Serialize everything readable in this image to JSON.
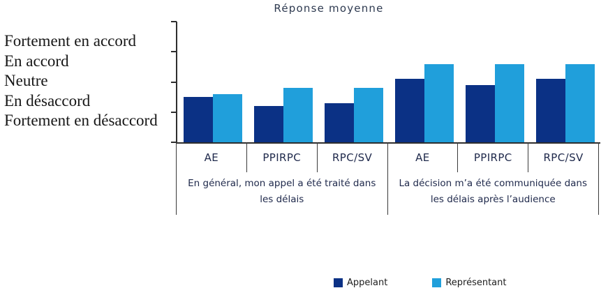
{
  "title": "Réponse moyenne",
  "colors": {
    "appelant": "#0b3185",
    "representant": "#209fdb",
    "axis": "#2e2e2e",
    "table_border": "#3a3a3a",
    "navy_text": "#202a4c",
    "label_text": "#161616"
  },
  "y_axis": {
    "labels": [
      "Fortement en accord",
      "En accord",
      "Neutre",
      "En désaccord",
      "Fortement en désaccord"
    ]
  },
  "legend": [
    {
      "label": "Appelant",
      "color": "#0b3185"
    },
    {
      "label": "Représentant",
      "color": "#209fdb"
    }
  ],
  "chart_data": {
    "type": "bar",
    "title": "Réponse moyenne",
    "ylabel": "Réponse moyenne",
    "scale": {
      "min": 1,
      "max": 5,
      "tick_labels_top_to_bottom": [
        "Fortement en accord",
        "En accord",
        "Neutre",
        "En désaccord",
        "Fortement en désaccord"
      ],
      "grid": false
    },
    "legend_position": "bottom",
    "groups": [
      {
        "question": "En général, mon appel a été traité dans les délais",
        "categories": [
          "AE",
          "PPIRPC",
          "RPC/SV"
        ],
        "series": [
          {
            "name": "Appelant",
            "values": [
              2.5,
              2.2,
              2.3
            ]
          },
          {
            "name": "Représentant",
            "values": [
              2.6,
              2.8,
              2.8
            ]
          }
        ]
      },
      {
        "question": "La décision m’a été communiquée dans les délais après l’audience",
        "categories": [
          "AE",
          "PPIRPC",
          "RPC/SV"
        ],
        "series": [
          {
            "name": "Appelant",
            "values": [
              3.1,
              2.9,
              3.1
            ]
          },
          {
            "name": "Représentant",
            "values": [
              3.6,
              3.6,
              3.6
            ]
          }
        ]
      }
    ]
  }
}
